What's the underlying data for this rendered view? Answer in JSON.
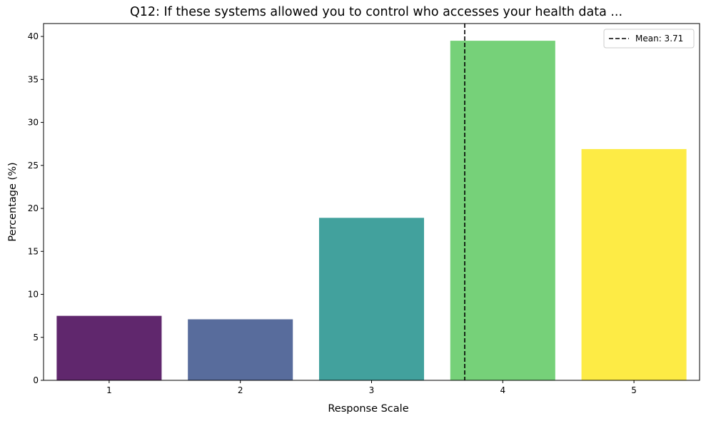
{
  "chart_data": {
    "type": "bar",
    "title": "Q12: If these systems allowed you to control who accesses your health data ...",
    "xlabel": "Response Scale",
    "ylabel": "Percentage (%)",
    "categories": [
      "1",
      "2",
      "3",
      "4",
      "5"
    ],
    "values": [
      7.5,
      7.1,
      18.9,
      39.5,
      26.9
    ],
    "colors": [
      "#440154",
      "#3b528b",
      "#21918c",
      "#5ec962",
      "#fde725"
    ],
    "bar_opacity": 0.85,
    "ylim": [
      0,
      41.5
    ],
    "yticks": [
      0,
      5,
      10,
      15,
      20,
      25,
      30,
      35,
      40
    ],
    "grid": false,
    "mean_line": {
      "value": 3.71,
      "label": "Mean: 3.71",
      "color": "#000000",
      "style": "dashed"
    },
    "legend": {
      "placement": "top-right",
      "entries": [
        "Mean: 3.71"
      ]
    }
  }
}
